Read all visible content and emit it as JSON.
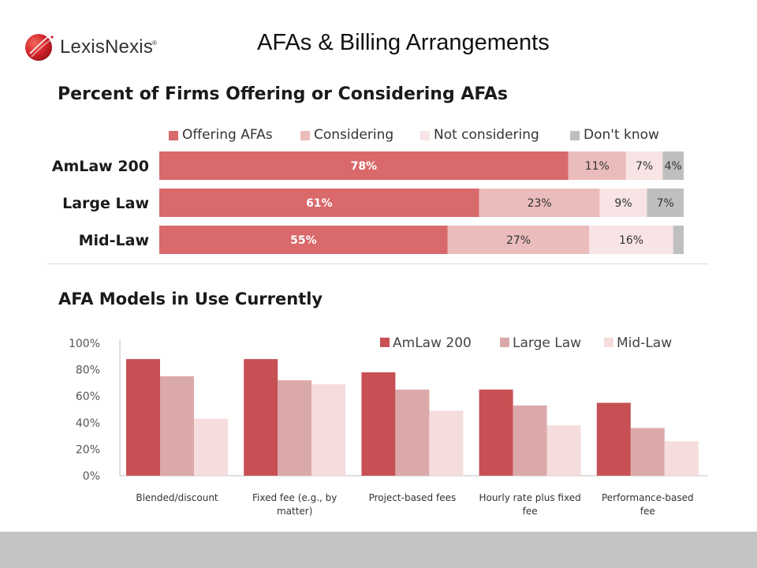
{
  "header": {
    "logo_text": "LexisNexis",
    "logo_mark": "®",
    "title": "AFAs & Billing Arrangements"
  },
  "colors": {
    "offering": "#d9696b",
    "considering": "#ebbcbc",
    "not_considering": "#f8e4e5",
    "dont_know": "#bfbfbf",
    "amlaw": "#c75054",
    "largelaw": "#dca9aa",
    "midlaw": "#f5dcdd",
    "footer": "#c4c4c4"
  },
  "chart_data": [
    {
      "type": "bar",
      "orientation": "horizontal-stacked",
      "title": "Percent of Firms Offering or Considering AFAs",
      "categories": [
        "AmLaw 200",
        "Large Law",
        "Mid-Law"
      ],
      "series": [
        {
          "name": "Offering AFAs",
          "values": [
            78,
            61,
            55
          ],
          "labels": [
            "78%",
            "61%",
            "55%"
          ]
        },
        {
          "name": "Considering",
          "values": [
            11,
            23,
            27
          ],
          "labels": [
            "11%",
            "23%",
            "27%"
          ]
        },
        {
          "name": "Not considering",
          "values": [
            7,
            9,
            16
          ],
          "labels": [
            "7%",
            "9%",
            "16%"
          ]
        },
        {
          "name": "Don't know",
          "values": [
            4,
            7,
            2
          ],
          "labels": [
            "4%",
            "7%",
            ""
          ]
        }
      ],
      "legend": "top"
    },
    {
      "type": "bar",
      "title": "AFA Models in Use Currently",
      "categories": [
        "Blended/discount",
        "Fixed fee (e.g., by matter)",
        "Project-based fees",
        "Hourly rate plus fixed fee",
        "Performance-based fee"
      ],
      "category_lines": [
        [
          "Blended/discount"
        ],
        [
          "Fixed fee (e.g., by",
          "matter)"
        ],
        [
          "Project-based fees"
        ],
        [
          "Hourly rate plus  fixed",
          "fee"
        ],
        [
          "Performance-based",
          "fee"
        ]
      ],
      "series": [
        {
          "name": "AmLaw 200",
          "values": [
            88,
            88,
            78,
            65,
            55
          ]
        },
        {
          "name": "Large Law",
          "values": [
            75,
            72,
            65,
            53,
            36
          ]
        },
        {
          "name": "Mid-Law",
          "values": [
            43,
            69,
            49,
            38,
            26
          ]
        }
      ],
      "y_ticks": [
        "0%",
        "20%",
        "40%",
        "60%",
        "80%",
        "100%"
      ],
      "ylim": [
        0,
        100
      ],
      "legend": "top-right"
    }
  ]
}
